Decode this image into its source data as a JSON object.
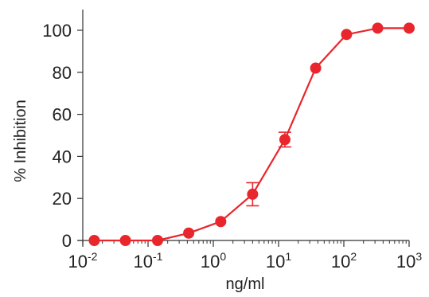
{
  "chart_data": {
    "type": "line",
    "xlabel": "ng/ml",
    "ylabel": "% Inhibition",
    "xscale": "log",
    "xlim": [
      0.01,
      1000
    ],
    "ylim": [
      0,
      110
    ],
    "x_ticks": [
      {
        "base": "10",
        "exp": "-2",
        "value": 0.01
      },
      {
        "base": "10",
        "exp": "-1",
        "value": 0.1
      },
      {
        "base": "10",
        "exp": "0",
        "value": 1
      },
      {
        "base": "10",
        "exp": "1",
        "value": 10
      },
      {
        "base": "10",
        "exp": "2",
        "value": 100
      },
      {
        "base": "10",
        "exp": "3",
        "value": 1000
      }
    ],
    "y_ticks": [
      "0",
      "20",
      "40",
      "60",
      "80",
      "100"
    ],
    "y_tick_values": [
      0,
      20,
      40,
      60,
      80,
      100
    ],
    "grid": false,
    "color": "#e8262c",
    "series": [
      {
        "x": [
          0.015,
          0.045,
          0.14,
          0.42,
          1.3,
          4.0,
          12.5,
          37,
          110,
          330,
          1000
        ],
        "y": [
          0,
          0,
          0,
          3.5,
          9,
          22,
          48,
          82,
          98,
          101,
          101
        ],
        "err": [
          0,
          0,
          0,
          0,
          0,
          5.5,
          3.5,
          0,
          0,
          0,
          0
        ]
      }
    ]
  }
}
